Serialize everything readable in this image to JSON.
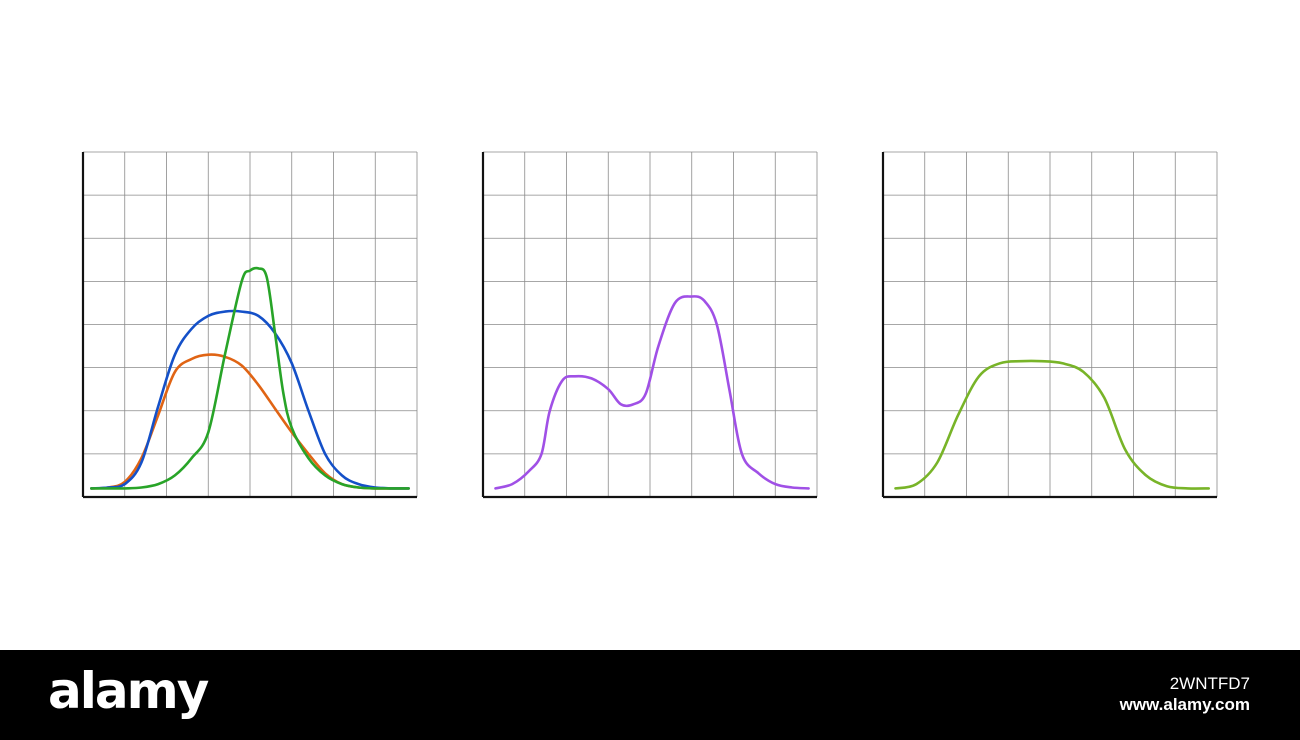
{
  "chart_data": [
    {
      "type": "line",
      "title": "",
      "xlabel": "",
      "ylabel": "",
      "xlim": [
        0,
        8
      ],
      "ylim": [
        0,
        8
      ],
      "grid": true,
      "series": [
        {
          "color": "#e06414",
          "x": [
            0.2,
            0.6,
            1.0,
            1.4,
            1.8,
            2.2,
            2.6,
            3.0,
            3.4,
            3.8,
            4.2,
            4.6,
            5.0,
            5.4,
            5.8,
            6.2,
            6.6,
            7.0,
            7.4,
            7.8
          ],
          "y": [
            0.2,
            0.22,
            0.35,
            0.9,
            1.9,
            2.9,
            3.2,
            3.3,
            3.25,
            3.05,
            2.6,
            2.05,
            1.5,
            1.0,
            0.55,
            0.3,
            0.22,
            0.2,
            0.2,
            0.2
          ]
        },
        {
          "color": "#1450c8",
          "x": [
            0.2,
            0.6,
            1.0,
            1.4,
            1.8,
            2.2,
            2.6,
            3.0,
            3.4,
            3.8,
            4.2,
            4.6,
            5.0,
            5.4,
            5.8,
            6.2,
            6.6,
            7.0,
            7.4,
            7.8
          ],
          "y": [
            0.2,
            0.22,
            0.3,
            0.8,
            2.1,
            3.3,
            3.9,
            4.2,
            4.3,
            4.3,
            4.2,
            3.8,
            3.1,
            2.0,
            1.0,
            0.5,
            0.3,
            0.22,
            0.2,
            0.2
          ]
        },
        {
          "color": "#28a428",
          "x": [
            0.2,
            0.6,
            1.0,
            1.4,
            1.8,
            2.2,
            2.6,
            3.0,
            3.4,
            3.8,
            4.0,
            4.2,
            4.4,
            4.6,
            4.8,
            5.0,
            5.4,
            5.8,
            6.2,
            6.6,
            7.0,
            7.4,
            7.8
          ],
          "y": [
            0.2,
            0.2,
            0.2,
            0.22,
            0.3,
            0.5,
            0.9,
            1.5,
            3.3,
            5.0,
            5.25,
            5.3,
            5.1,
            3.8,
            2.4,
            1.6,
            0.9,
            0.5,
            0.3,
            0.22,
            0.2,
            0.2,
            0.2
          ]
        }
      ]
    },
    {
      "type": "line",
      "title": "",
      "xlabel": "",
      "ylabel": "",
      "xlim": [
        0,
        8
      ],
      "ylim": [
        0,
        8
      ],
      "grid": true,
      "series": [
        {
          "color": "#a050e6",
          "x": [
            0.3,
            0.7,
            1.1,
            1.4,
            1.6,
            1.9,
            2.2,
            2.6,
            3.0,
            3.3,
            3.6,
            3.9,
            4.2,
            4.6,
            5.0,
            5.3,
            5.6,
            5.9,
            6.2,
            6.6,
            7.0,
            7.4,
            7.8
          ],
          "y": [
            0.2,
            0.3,
            0.6,
            1.0,
            2.0,
            2.7,
            2.8,
            2.75,
            2.5,
            2.15,
            2.15,
            2.4,
            3.5,
            4.5,
            4.65,
            4.55,
            4.0,
            2.5,
            1.0,
            0.55,
            0.3,
            0.22,
            0.2
          ]
        }
      ]
    },
    {
      "type": "line",
      "title": "",
      "xlabel": "",
      "ylabel": "",
      "xlim": [
        0,
        8
      ],
      "ylim": [
        0,
        8
      ],
      "grid": true,
      "series": [
        {
          "color": "#78b428",
          "x": [
            0.3,
            0.8,
            1.3,
            1.8,
            2.3,
            2.8,
            3.3,
            3.8,
            4.3,
            4.8,
            5.3,
            5.8,
            6.3,
            6.8,
            7.3,
            7.8
          ],
          "y": [
            0.2,
            0.3,
            0.8,
            1.9,
            2.8,
            3.1,
            3.15,
            3.15,
            3.1,
            2.9,
            2.3,
            1.1,
            0.5,
            0.25,
            0.2,
            0.2
          ]
        }
      ]
    }
  ],
  "footer": {
    "brand": "alamy",
    "image_id": "2WNTFD7",
    "url": "www.alamy.com"
  }
}
